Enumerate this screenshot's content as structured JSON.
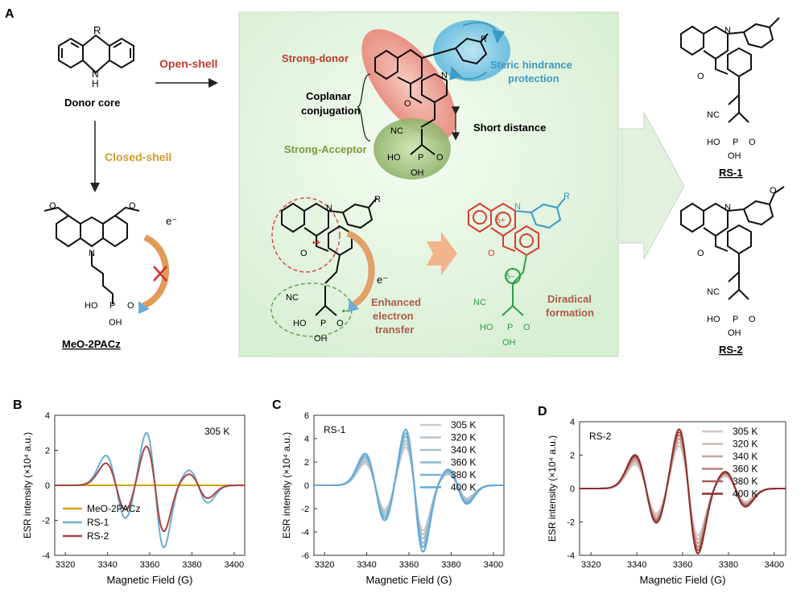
{
  "panel_a": {
    "panel_letter": "A",
    "donor_core": {
      "title": "Donor core",
      "r": "R",
      "nh": "N",
      "h": "H"
    },
    "open_shell": "Open-shell",
    "closed_shell": "Closed-shell",
    "meo_2pacz": {
      "name": "MeO-2PACz",
      "electron": "e⁻",
      "n": "N",
      "o1": "O",
      "o2": "O",
      "p": "P",
      "o_double": "O",
      "oh1": "OH",
      "ho": "HO"
    },
    "center": {
      "strong_donor": "Strong-donor",
      "steric_1": "Steric hindrance",
      "steric_2": "protection",
      "coplanar_1": "Coplanar",
      "coplanar_2": "conjugation",
      "short_distance": "Short distance",
      "strong_acceptor": "Strong-Acceptor",
      "enhanced_1": "Enhanced",
      "enhanced_2": "electron",
      "enhanced_3": "transfer",
      "diradical_1": "Diradical",
      "diradical_2": "formation",
      "electron": "e⁻",
      "r": "R",
      "n": "N",
      "o": "O",
      "cn": "NC",
      "p": "P",
      "o_eq": "O",
      "ho": "HO",
      "oh": "OH",
      "delta_plus": "δ+",
      "delta_minus": "δ−",
      "dot_plus": "•+",
      "dot_minus": "•−"
    },
    "rs1": {
      "name": "RS-1",
      "n": "N",
      "o": "O",
      "cn": "NC",
      "ho": "HO",
      "p": "P",
      "o_eq": "O",
      "oh": "OH"
    },
    "rs2": {
      "name": "RS-2",
      "n": "N",
      "o": "O",
      "o_me": "O",
      "cn": "NC",
      "ho": "HO",
      "p": "P",
      "o_eq": "O",
      "oh": "OH"
    }
  },
  "chart_data": [
    {
      "panel": "B",
      "type": "line",
      "xlabel": "Magnetic Field (G)",
      "ylabel": "ESR intensity (×10⁴ a.u.)",
      "xlim": [
        3315,
        3405
      ],
      "ylim": [
        -4,
        4
      ],
      "xticks": [
        3320,
        3340,
        3360,
        3380,
        3400
      ],
      "yticks": [
        -4,
        -2,
        0,
        2,
        4
      ],
      "annotation": "305 K",
      "legend": [
        "MeO-2PACz",
        "RS-1",
        "RS-2"
      ],
      "series": [
        {
          "name": "MeO-2PACz",
          "color": "#d4a017",
          "scale": 0.0
        },
        {
          "name": "RS-1",
          "color": "#6aaed6",
          "scale": 1.0
        },
        {
          "name": "RS-2",
          "color": "#a94442",
          "scale": 0.74
        }
      ],
      "peak_max": 3.0,
      "peak_min": -3.55
    },
    {
      "panel": "C",
      "type": "line",
      "xlabel": "Magnetic Field (G)",
      "ylabel": "ESR intensity (×10⁴ a.u.)",
      "xlim": [
        3315,
        3405
      ],
      "ylim": [
        -6,
        6
      ],
      "xticks": [
        3320,
        3340,
        3360,
        3380,
        3400
      ],
      "yticks": [
        -6,
        -4,
        -2,
        0,
        2,
        4,
        6
      ],
      "annotation": "RS-1",
      "legend": [
        "305 K",
        "320 K",
        "340 K",
        "360 K",
        "380 K",
        "400 K"
      ],
      "series": [
        {
          "name": "305 K",
          "color": "#c9c9c9",
          "scale": 0.68
        },
        {
          "name": "320 K",
          "color": "#b7c4cc",
          "scale": 0.74
        },
        {
          "name": "340 K",
          "color": "#a3bfcd",
          "scale": 0.8
        },
        {
          "name": "360 K",
          "color": "#8eb9d0",
          "scale": 0.87
        },
        {
          "name": "380 K",
          "color": "#79b2d4",
          "scale": 0.93
        },
        {
          "name": "400 K",
          "color": "#62a8d8",
          "scale": 1.0
        }
      ],
      "peak_max": 4.8,
      "peak_min": -5.7
    },
    {
      "panel": "D",
      "type": "line",
      "xlabel": "Magnetic Field (G)",
      "ylabel": "ESR intensity (×10⁴ a.u.)",
      "xlim": [
        3315,
        3405
      ],
      "ylim": [
        -4,
        4
      ],
      "xticks": [
        3320,
        3340,
        3360,
        3380,
        3400
      ],
      "yticks": [
        -4,
        -2,
        0,
        2,
        4
      ],
      "annotation": "RS-2",
      "legend": [
        "305 K",
        "320 K",
        "340 K",
        "360 K",
        "380 K",
        "400 K"
      ],
      "series": [
        {
          "name": "305 K",
          "color": "#cfc6c6",
          "scale": 0.72
        },
        {
          "name": "320 K",
          "color": "#d2b8b6",
          "scale": 0.78
        },
        {
          "name": "340 K",
          "color": "#c59f9c",
          "scale": 0.84
        },
        {
          "name": "360 K",
          "color": "#b6807b",
          "scale": 0.9
        },
        {
          "name": "380 K",
          "color": "#a85f5a",
          "scale": 0.95
        },
        {
          "name": "400 K",
          "color": "#8e2e2a",
          "scale": 1.0
        }
      ],
      "peak_max": 3.55,
      "peak_min": -3.9
    }
  ]
}
